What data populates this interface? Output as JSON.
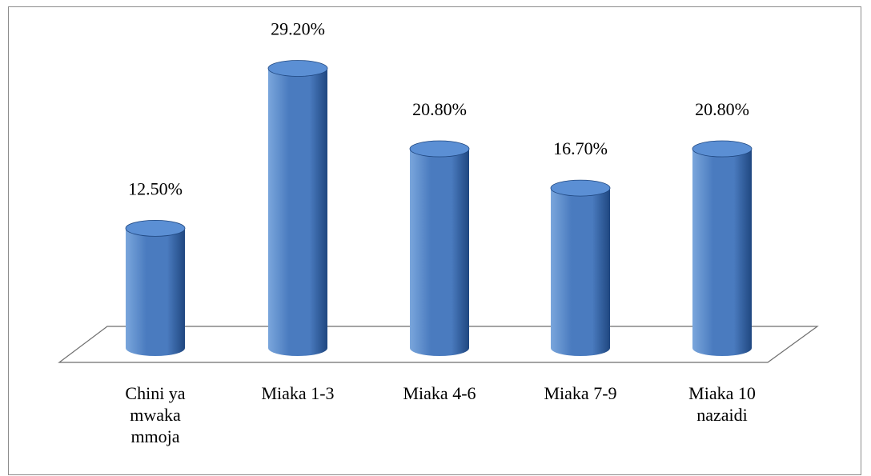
{
  "chart_data": {
    "type": "bar",
    "style": "3d-cylinder",
    "categories": [
      "Chini ya mwaka mmoja",
      "Miaka 1-3",
      "Miaka 4-6",
      "Miaka 7-9",
      "Miaka 10 nazaidi"
    ],
    "category_label_lines": [
      [
        "Chini ya",
        "mwaka",
        "mmoja"
      ],
      [
        "Miaka 1-3"
      ],
      [
        "Miaka 4-6"
      ],
      [
        "Miaka 7-9"
      ],
      [
        "Miaka 10",
        "nazaidi"
      ]
    ],
    "values": [
      12.5,
      29.2,
      20.8,
      16.7,
      20.8
    ],
    "data_labels": [
      "12.50%",
      "29.20%",
      "20.80%",
      "16.70%",
      "20.80%"
    ],
    "title": "",
    "xlabel": "",
    "ylabel": "",
    "ylim": [
      0,
      30
    ],
    "grid": false,
    "legend": "none",
    "colors": {
      "bar": "#4a7bbf",
      "bar_dark": "#1f4780",
      "bar_light": "#7aa6dc",
      "top": "#5b8fd4",
      "floor_stroke": "#6e6e6e",
      "frame": "#8c8c8c"
    }
  }
}
